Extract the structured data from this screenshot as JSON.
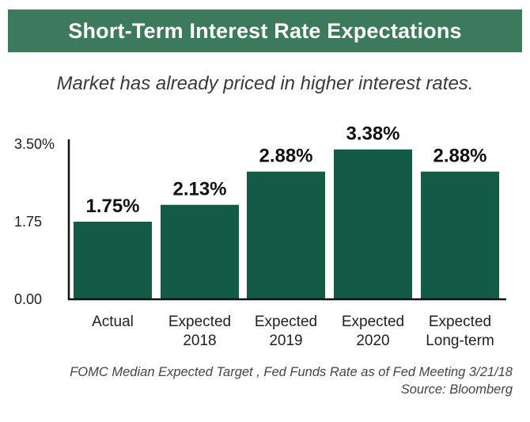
{
  "header": {
    "title": "Short-Term Interest Rate Expectations",
    "subtitle": "Market has already priced in higher interest rates."
  },
  "footnote": {
    "line1": "FOMC Median Expected Target , Fed Funds Rate as of Fed Meeting 3/21/18",
    "line2": "Source: Bloomberg"
  },
  "colors": {
    "banner": "#3d7a5b",
    "bar": "#135b46",
    "axis": "#111111"
  },
  "chart_data": {
    "type": "bar",
    "title": "Short-Term Interest Rate Expectations",
    "subtitle": "Market has already priced in higher interest rates.",
    "categories": [
      [
        "Actual"
      ],
      [
        "Expected",
        "2018"
      ],
      [
        "Expected",
        "2019"
      ],
      [
        "Expected",
        "2020"
      ],
      [
        "Expected",
        "Long-term"
      ]
    ],
    "values": [
      1.75,
      2.13,
      2.88,
      3.38,
      2.88
    ],
    "data_labels": [
      "1.75%",
      "2.13%",
      "2.88%",
      "3.38%",
      "2.88%"
    ],
    "y_ticks": [
      0,
      1.75,
      3.5
    ],
    "y_tick_labels": [
      "0.00",
      "1.75",
      "3.50%"
    ],
    "ylim": [
      0,
      3.5
    ],
    "xlabel": "",
    "ylabel": "",
    "grid": false,
    "legend": "none"
  }
}
